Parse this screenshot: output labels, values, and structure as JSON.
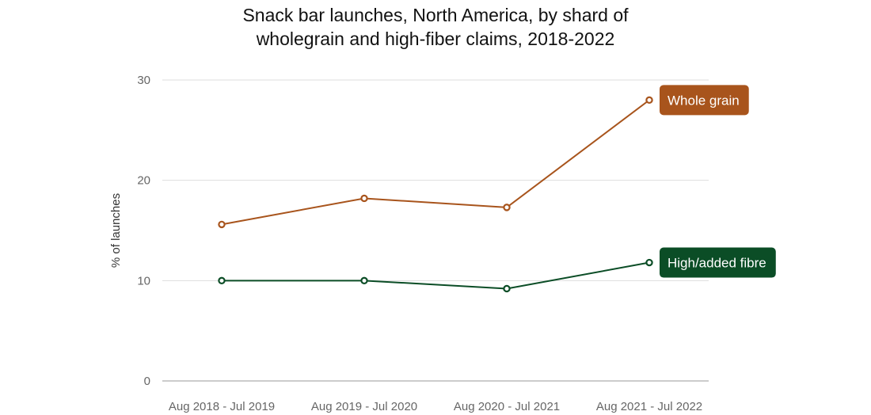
{
  "chart_data": {
    "type": "line",
    "title": "Snack bar launches, North America, by shard of wholegrain and high-fiber claims, 2018-2022",
    "title_lines": [
      "Snack bar launches, North America, by shard of",
      "wholegrain and high-fiber claims, 2018-2022"
    ],
    "xlabel": "",
    "ylabel": "% of launches",
    "ylim": [
      0,
      30
    ],
    "yticks": [
      0,
      10,
      20,
      30
    ],
    "grid": true,
    "categories": [
      "Aug 2018 - Jul 2019",
      "Aug 2019 - Jul 2020",
      "Aug 2020 - Jul 2021",
      "Aug 2021 - Jul 2022"
    ],
    "series": [
      {
        "name": "Whole grain",
        "values": [
          15.6,
          18.2,
          17.3,
          28.0
        ],
        "color": "#a8541c"
      },
      {
        "name": "High/added fibre",
        "values": [
          10.0,
          10.0,
          9.2,
          11.8
        ],
        "color": "#0b4d26"
      }
    ]
  }
}
